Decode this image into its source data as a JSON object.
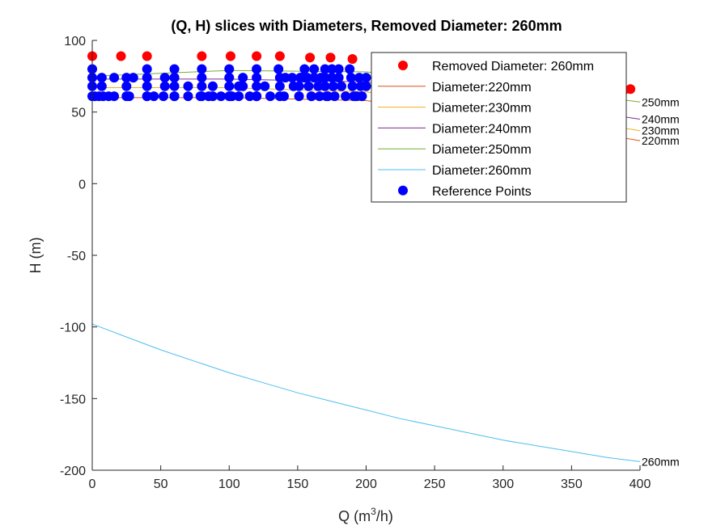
{
  "chart_data": {
    "type": "line",
    "title": "(Q, H) slices with Diameters, Removed Diameter: 260mm",
    "xlabel": "Q (m",
    "xlabel_sup": "3",
    "xlabel_end": "/h)",
    "ylabel": "H (m)",
    "xlim": [
      0,
      400
    ],
    "ylim": [
      -200,
      100
    ],
    "xticks": [
      0,
      50,
      100,
      150,
      200,
      250,
      300,
      350,
      400
    ],
    "yticks": [
      -200,
      -150,
      -100,
      -50,
      0,
      50,
      100
    ],
    "grid": false,
    "legend_position": "top-right",
    "legend": [
      {
        "label": "Removed Diameter: 260mm",
        "kind": "marker",
        "color": "#ff0000"
      },
      {
        "label": "Diameter:220mm",
        "kind": "line",
        "color": "#d95319"
      },
      {
        "label": "Diameter:230mm",
        "kind": "line",
        "color": "#edb120"
      },
      {
        "label": "Diameter:240mm",
        "kind": "line",
        "color": "#7e2f8e"
      },
      {
        "label": "Diameter:250mm",
        "kind": "line",
        "color": "#77ac30"
      },
      {
        "label": "Diameter:260mm",
        "kind": "line",
        "color": "#4dbeee"
      },
      {
        "label": "Reference Points",
        "kind": "marker",
        "color": "#0000ff"
      }
    ],
    "series": [
      {
        "name": "Diameter:220mm",
        "color": "#d95319",
        "end_label": "220mm",
        "x": [
          0,
          100,
          200,
          300,
          400
        ],
        "y": [
          60,
          60,
          58,
          46,
          30
        ]
      },
      {
        "name": "Diameter:230mm",
        "color": "#edb120",
        "end_label": "230mm",
        "x": [
          0,
          100,
          200,
          300,
          400
        ],
        "y": [
          67,
          67,
          64,
          52,
          37
        ]
      },
      {
        "name": "Diameter:240mm",
        "color": "#7e2f8e",
        "end_label": "240mm",
        "x": [
          0,
          100,
          200,
          300,
          400
        ],
        "y": [
          73,
          73,
          71,
          59,
          45
        ]
      },
      {
        "name": "Diameter:250mm",
        "color": "#77ac30",
        "end_label": "250mm",
        "x": [
          0,
          100,
          200,
          300,
          400
        ],
        "y": [
          75,
          79,
          78,
          69,
          57
        ]
      },
      {
        "name": "Diameter:260mm",
        "color": "#4dbeee",
        "end_label": "260mm",
        "x": [
          0,
          25,
          50,
          75,
          100,
          125,
          150,
          175,
          200,
          225,
          250,
          275,
          300,
          325,
          350,
          375,
          400
        ],
        "y": [
          -98,
          -107,
          -116,
          -124,
          -132,
          -139,
          -146,
          -152,
          -158,
          -164,
          -169,
          -174,
          -179,
          -183,
          -187,
          -191,
          -194
        ]
      }
    ],
    "removed_points": {
      "name": "Removed Diameter: 260mm",
      "color": "#ff0000",
      "x": [
        0,
        21,
        40,
        80,
        101,
        120,
        137,
        159,
        174,
        190,
        369,
        380,
        388,
        393
      ],
      "y": [
        89,
        89,
        89,
        89,
        89,
        89,
        89,
        88,
        88,
        87,
        67,
        66,
        65,
        66
      ]
    },
    "reference_points": {
      "name": "Reference Points",
      "color": "#0000ff",
      "x": [
        0,
        0,
        0,
        0,
        2,
        5,
        7,
        7,
        8,
        12,
        16,
        16,
        25,
        25,
        25,
        27,
        30,
        40,
        40,
        40,
        40,
        40,
        45,
        52,
        53,
        53,
        60,
        60,
        60,
        60,
        60,
        60,
        70,
        70,
        79,
        80,
        80,
        80,
        80,
        85,
        88,
        88,
        94,
        100,
        100,
        100,
        100,
        101,
        102,
        107,
        107,
        110,
        110,
        115,
        120,
        120,
        120,
        120,
        120,
        120,
        126,
        130,
        136,
        137,
        137,
        137,
        140,
        141,
        146,
        147,
        151,
        151,
        152,
        152,
        155,
        155,
        157,
        158,
        160,
        160,
        162,
        162,
        165,
        166,
        167,
        170,
        170,
        170,
        171,
        172,
        175,
        175,
        176,
        177,
        180,
        180,
        182,
        185,
        188,
        189,
        190,
        191,
        193,
        195,
        196,
        197,
        200,
        200
      ],
      "y": [
        80,
        74,
        68,
        61,
        61,
        61,
        68,
        74,
        61,
        61,
        61,
        74,
        74,
        68,
        61,
        61,
        74,
        80,
        74,
        68,
        61,
        61,
        61,
        61,
        74,
        68,
        80,
        74,
        74,
        68,
        61,
        61,
        68,
        61,
        61,
        80,
        74,
        68,
        61,
        61,
        68,
        61,
        61,
        80,
        74,
        68,
        61,
        61,
        61,
        61,
        68,
        74,
        68,
        61,
        80,
        74,
        68,
        61,
        61,
        61,
        68,
        61,
        80,
        74,
        68,
        61,
        61,
        74,
        74,
        68,
        61,
        68,
        74,
        74,
        80,
        74,
        74,
        68,
        61,
        61,
        80,
        74,
        68,
        61,
        74,
        80,
        74,
        68,
        61,
        61,
        80,
        74,
        68,
        61,
        80,
        74,
        68,
        61,
        80,
        74,
        68,
        61,
        61,
        74,
        68,
        61,
        74,
        68
      ]
    }
  }
}
